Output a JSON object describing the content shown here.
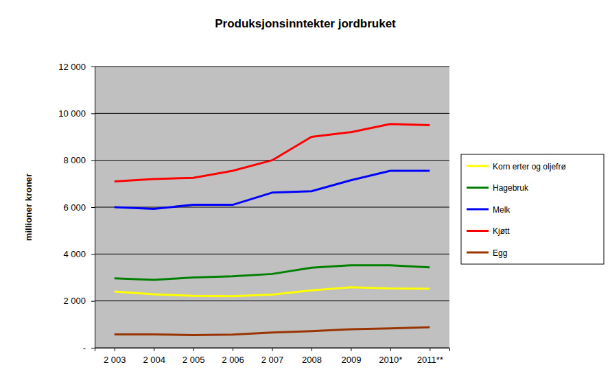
{
  "chart_data": {
    "type": "line",
    "title": "Produksjonsinntekter jordbruket",
    "y_label": "millioner kroner",
    "categories": [
      "2 003",
      "2 004",
      "2 005",
      "2 006",
      "2 007",
      "2008",
      "2009",
      "2010*",
      "2011**"
    ],
    "series": [
      {
        "name": "Korn erter og oljefrø",
        "color": "#ffff00",
        "values": [
          2400,
          2280,
          2220,
          2200,
          2270,
          2450,
          2580,
          2530,
          2520
        ]
      },
      {
        "name": "Hagebruk",
        "color": "#008000",
        "values": [
          2960,
          2900,
          3000,
          3050,
          3150,
          3420,
          3520,
          3520,
          3430
        ]
      },
      {
        "name": "Melk",
        "color": "#0000ff",
        "values": [
          6000,
          5930,
          6100,
          6100,
          6620,
          6680,
          7150,
          7550,
          7550
        ]
      },
      {
        "name": "Kjøtt",
        "color": "#ff0000",
        "values": [
          7100,
          7200,
          7250,
          7550,
          8000,
          9000,
          9200,
          9550,
          9500
        ]
      },
      {
        "name": "Egg",
        "color": "#993300",
        "values": [
          570,
          570,
          540,
          560,
          650,
          710,
          790,
          830,
          880
        ]
      }
    ],
    "ylim": [
      0,
      12000
    ],
    "yticks": [
      {
        "value": 0,
        "label": "-"
      },
      {
        "value": 2000,
        "label": "2 000"
      },
      {
        "value": 4000,
        "label": "4 000"
      },
      {
        "value": 6000,
        "label": "6 000"
      },
      {
        "value": 8000,
        "label": "8 000"
      },
      {
        "value": 10000,
        "label": "10 000"
      },
      {
        "value": 12000,
        "label": "12 000"
      }
    ],
    "grid": true,
    "legend": "right"
  }
}
